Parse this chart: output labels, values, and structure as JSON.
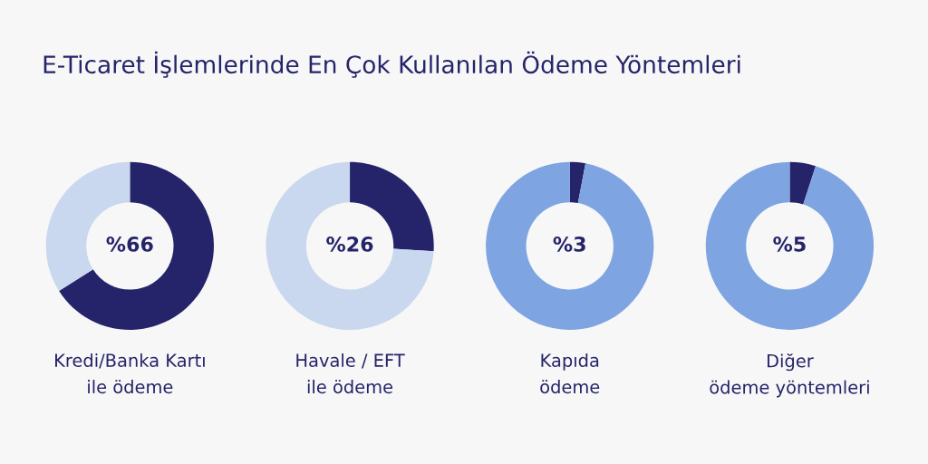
{
  "chart_data": [
    {
      "type": "donut",
      "title": "E-Ticaret İşlemlerinde En Çok Kullanılan Ödeme Yöntemleri",
      "xlabel": "Kredi/Banka Kartı\nile ödeme",
      "categories": [
        null,
        null
      ],
      "values": [
        66,
        34
      ],
      "colors": [
        "#25246a",
        "#c9d7ef"
      ],
      "annotations": [
        "%66"
      ]
    },
    {
      "type": "donut",
      "xlabel": "Havale / EFT\nile ödeme",
      "categories": [
        null,
        null
      ],
      "values": [
        26,
        74
      ],
      "colors": [
        "#25246a",
        "#c9d7ef"
      ],
      "annotations": [
        "%26"
      ]
    },
    {
      "type": "donut",
      "xlabel": "Kapıda\nödeme",
      "categories": [
        null,
        null
      ],
      "values": [
        3,
        97
      ],
      "colors": [
        "#25246a",
        "#7fa4e2"
      ],
      "annotations": [
        "%3"
      ]
    },
    {
      "type": "donut",
      "xlabel": "Diğer\nödeme yöntemleri",
      "categories": [
        null,
        null
      ],
      "values": [
        5,
        95
      ],
      "colors": [
        "#25246a",
        "#7fa4e2"
      ],
      "annotations": [
        "%5"
      ]
    }
  ]
}
